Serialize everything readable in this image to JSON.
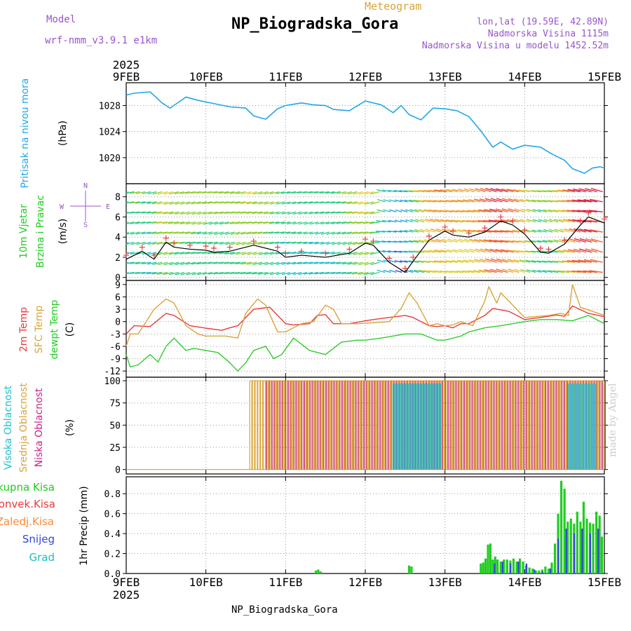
{
  "header": {
    "model_label": "Model",
    "model_name": "wrf-nmm_v3.9.1 e1km",
    "subtitle": "Meteogram",
    "title": "NP_Biogradska_Gora",
    "lonlat": "lon,lat (19.59E, 42.89N)",
    "elevation": "Nadmorska Visina 1115m",
    "model_elevation": "Nadmorska Visina u modelu 1452.52m"
  },
  "footer": {
    "title": "NP_Biogradska_Gora",
    "credit": "made by Angel"
  },
  "colors": {
    "pressure": "#22a6e8",
    "temp_2m": "#e83b3b",
    "temp_sfc": "#d9a43a",
    "dewpoint": "#2ecc2e",
    "cloud_high": "#1fbfd0",
    "cloud_mid": "#d9a43a",
    "cloud_low": "#cc2288",
    "rain_total": "#22cc22",
    "rain_conv": "#e83b3b",
    "freezing_rain": "#ff8833",
    "snow": "#3344dd",
    "graupel": "#22bbbb",
    "gust_marker": "#e83b3b",
    "wind_line": "#000000",
    "grid": "#999999"
  },
  "chart_data": {
    "type": "line",
    "time_axis": {
      "year": "2025",
      "ticks": [
        "9FEB",
        "10FEB",
        "11FEB",
        "12FEB",
        "13FEB",
        "14FEB",
        "15FEB"
      ],
      "range_days": [
        0,
        6
      ]
    },
    "panels": [
      {
        "id": "pressure",
        "ylabel_title": "Pritisak na nivou mora",
        "ylabel_units": "(hPa)",
        "ylim": [
          1016,
          1031.5
        ],
        "yticks": [
          1020,
          1024,
          1028
        ],
        "series": [
          {
            "name": "Pritisak na nivou mora",
            "x": [
              0,
              0.1,
              0.3,
              0.45,
              0.55,
              0.75,
              0.9,
              1.1,
              1.3,
              1.5,
              1.6,
              1.75,
              1.9,
              2.0,
              2.2,
              2.35,
              2.5,
              2.6,
              2.8,
              3.0,
              3.2,
              3.35,
              3.45,
              3.55,
              3.7,
              3.85,
              4.0,
              4.15,
              4.3,
              4.45,
              4.6,
              4.7,
              4.85,
              5.0,
              5.2,
              5.35,
              5.5,
              5.6,
              5.75,
              5.85,
              5.95,
              6.0
            ],
            "y": [
              1029.6,
              1029.9,
              1030.1,
              1028.4,
              1027.6,
              1029.3,
              1028.8,
              1028.3,
              1027.8,
              1027.6,
              1026.4,
              1025.9,
              1027.5,
              1028.0,
              1028.4,
              1028.1,
              1028.0,
              1027.4,
              1027.2,
              1028.7,
              1028.1,
              1026.9,
              1028.0,
              1026.6,
              1025.8,
              1027.6,
              1027.5,
              1027.2,
              1026.3,
              1024.1,
              1021.6,
              1022.4,
              1021.3,
              1021.9,
              1021.6,
              1020.5,
              1019.6,
              1018.3,
              1017.6,
              1018.4,
              1018.6,
              1018.4
            ]
          }
        ]
      },
      {
        "id": "wind",
        "ylabel_title": "10m Vjetar",
        "ylabel_title2": "Brzina i Pravac",
        "ylabel_units": "(m/s)",
        "compass": {
          "n": "N",
          "w": "W",
          "e": "E",
          "s": "S"
        },
        "ylim": [
          -0.3,
          9.3
        ],
        "yticks": [
          0,
          2,
          4,
          6,
          8
        ],
        "series": [
          {
            "name": "Brzina",
            "x": [
              0,
              0.2,
              0.35,
              0.5,
              0.6,
              0.8,
              1.0,
              1.1,
              1.3,
              1.6,
              1.9,
              2.0,
              2.2,
              2.5,
              2.8,
              3.0,
              3.1,
              3.3,
              3.5,
              3.6,
              3.8,
              4.0,
              4.1,
              4.3,
              4.5,
              4.7,
              4.85,
              5.0,
              5.2,
              5.3,
              5.5,
              5.7,
              5.8,
              6.0
            ],
            "y": [
              1.8,
              2.6,
              1.8,
              3.5,
              3.0,
              2.8,
              2.7,
              2.5,
              2.6,
              3.2,
              2.6,
              2.0,
              2.2,
              2.0,
              2.4,
              3.4,
              3.2,
              1.5,
              0.5,
              1.6,
              3.7,
              4.6,
              4.2,
              4.0,
              4.5,
              5.6,
              5.2,
              4.3,
              2.5,
              2.4,
              3.3,
              5.2,
              6.0,
              5.4
            ]
          }
        ]
      },
      {
        "id": "temperature",
        "ylabel_titles": [
          "2m Temp",
          "SFC Temp",
          "dewpt Temp"
        ],
        "ylabel_units": "(C)",
        "ylim": [
          -13.5,
          10
        ],
        "yticks": [
          -12,
          -9,
          -6,
          -3,
          0,
          3,
          6,
          9
        ],
        "series": [
          {
            "name": "2m Temp",
            "x": [
              0,
              0.1,
              0.3,
              0.45,
              0.5,
              0.6,
              0.8,
              1.0,
              1.2,
              1.3,
              1.4,
              1.5,
              1.6,
              1.8,
              2.0,
              2.1,
              2.3,
              2.4,
              2.5,
              2.6,
              2.8,
              3.0,
              3.1,
              3.3,
              3.5,
              3.6,
              3.8,
              3.9,
              4.0,
              4.1,
              4.2,
              4.3,
              4.5,
              4.6,
              4.8,
              5.0,
              5.2,
              5.4,
              5.5,
              5.6,
              5.8,
              6.0
            ],
            "y": [
              -3,
              -1,
              -1.2,
              1.2,
              2.0,
              1.5,
              -1.0,
              -1.6,
              -2.1,
              -1.5,
              -1.0,
              1.0,
              3.0,
              3.5,
              -0.5,
              -0.8,
              -0.5,
              1.5,
              1.7,
              -0.5,
              -0.5,
              0.2,
              0.5,
              1.0,
              1.5,
              1.0,
              -1.0,
              -1.2,
              -1.0,
              -1.5,
              -0.5,
              -0.5,
              1.5,
              3.2,
              2.5,
              0.5,
              1.0,
              1.6,
              1.3,
              3.8,
              2.0,
              1.2
            ]
          },
          {
            "name": "SFC Temp",
            "x": [
              0,
              0.05,
              0.15,
              0.35,
              0.5,
              0.6,
              0.75,
              0.9,
              1.0,
              1.25,
              1.4,
              1.5,
              1.65,
              1.75,
              1.9,
              2.0,
              2.2,
              2.35,
              2.5,
              2.6,
              2.7,
              2.9,
              3.1,
              3.3,
              3.45,
              3.55,
              3.65,
              3.8,
              3.9,
              4.0,
              4.1,
              4.2,
              4.35,
              4.5,
              4.55,
              4.65,
              4.7,
              4.8,
              5.0,
              5.3,
              5.45,
              5.55,
              5.6,
              5.7,
              5.85,
              6.0
            ],
            "y": [
              -6,
              -3,
              -3,
              3,
              5.5,
              4.5,
              -1,
              -3,
              -3.5,
              -3.5,
              -4,
              2,
              5.5,
              4,
              -2.5,
              -2.5,
              -0.5,
              0,
              4,
              3,
              -0.5,
              -0.5,
              -0.3,
              0,
              3.2,
              7,
              4.5,
              -1,
              -0.5,
              -1,
              -0.8,
              0,
              -1,
              5,
              8.5,
              4.5,
              7,
              5,
              1,
              1.5,
              2,
              1.5,
              9,
              3.5,
              2.5,
              1.5
            ]
          },
          {
            "name": "dewpt Temp",
            "x": [
              0,
              0.05,
              0.15,
              0.3,
              0.4,
              0.5,
              0.6,
              0.75,
              0.85,
              1.0,
              1.15,
              1.3,
              1.4,
              1.5,
              1.6,
              1.75,
              1.85,
              1.95,
              2.1,
              2.3,
              2.5,
              2.7,
              2.9,
              3.0,
              3.2,
              3.5,
              3.7,
              3.9,
              4.0,
              4.2,
              4.3,
              4.5,
              4.7,
              5.0,
              5.2,
              5.4,
              5.6,
              5.8,
              5.9,
              6.0
            ],
            "y": [
              -8,
              -11,
              -10.5,
              -8,
              -9.8,
              -6,
              -4,
              -7,
              -6.5,
              -7,
              -7.5,
              -10,
              -12,
              -10,
              -7,
              -6,
              -9,
              -8,
              -4,
              -7,
              -8,
              -5,
              -4.5,
              -4.5,
              -4,
              -3,
              -3,
              -4.5,
              -4.5,
              -3.5,
              -2.5,
              -1.5,
              -1,
              0,
              0.5,
              0.5,
              0.2,
              1.5,
              0.5,
              -0.5
            ]
          }
        ]
      },
      {
        "id": "clouds",
        "ylabel_titles": [
          "Visoka Oblacnost",
          "Srednja Oblacnost",
          "Niska Oblacnost"
        ],
        "ylabel_units": "(%)",
        "ylim": [
          -5,
          104
        ],
        "yticks": [
          0,
          25,
          50,
          75,
          100
        ],
        "series": [
          {
            "name": "Srednja Oblacnost",
            "active_from": 1.55,
            "active_to": 6.0,
            "value": 100
          },
          {
            "name": "Niska Oblacnost",
            "active_from": 1.75,
            "active_to": 6.0,
            "value": 100
          },
          {
            "name": "Visoka Oblacnost",
            "active_ranges": [
              [
                3.35,
                3.95
              ],
              [
                5.55,
                5.9
              ]
            ],
            "value": 97
          }
        ]
      },
      {
        "id": "precip",
        "ylabel_titles": [
          "Ukupna Kisa",
          "Konvek.Kisa",
          "Zaledj.Kisa",
          "Snijeg",
          "Grad"
        ],
        "ylabel_units": "1hr Precip (mm)",
        "ylim": [
          0,
          0.97
        ],
        "yticks": [
          0,
          0.2,
          0.4,
          0.6,
          0.8
        ],
        "series": [
          {
            "name": "Ukupna Kisa",
            "x": [
              2.38,
              2.41,
              2.44,
              3.55,
              3.58,
              4.45,
              4.48,
              4.51,
              4.54,
              4.57,
              4.6,
              4.63,
              4.66,
              4.7,
              4.74,
              4.78,
              4.82,
              4.86,
              4.9,
              4.94,
              4.98,
              5.02,
              5.06,
              5.1,
              5.14,
              5.18,
              5.22,
              5.26,
              5.3,
              5.34,
              5.38,
              5.42,
              5.46,
              5.5,
              5.54,
              5.58,
              5.62,
              5.66,
              5.7,
              5.74,
              5.78,
              5.82,
              5.86,
              5.9,
              5.94,
              5.97
            ],
            "y": [
              0.03,
              0.04,
              0.02,
              0.08,
              0.07,
              0.1,
              0.11,
              0.15,
              0.29,
              0.3,
              0.14,
              0.17,
              0.14,
              0.12,
              0.14,
              0.14,
              0.13,
              0.15,
              0.12,
              0.15,
              0.12,
              0.08,
              0.06,
              0.05,
              0.03,
              0.03,
              0.04,
              0.07,
              0.05,
              0.11,
              0.3,
              0.6,
              0.93,
              0.85,
              0.52,
              0.55,
              0.5,
              0.62,
              0.52,
              0.72,
              0.55,
              0.51,
              0.5,
              0.62,
              0.58,
              0.37
            ]
          },
          {
            "name": "Snijeg",
            "x": [
              4.6,
              4.7,
              4.8,
              4.9,
              5.0,
              5.1,
              5.2,
              5.3,
              5.4,
              5.5,
              5.6,
              5.7,
              5.8,
              5.9
            ],
            "y": [
              0.1,
              0.12,
              0.1,
              0.12,
              0.1,
              0.04,
              0.02,
              0.05,
              0.35,
              0.45,
              0.4,
              0.45,
              0.4,
              0.45
            ]
          }
        ]
      }
    ]
  }
}
